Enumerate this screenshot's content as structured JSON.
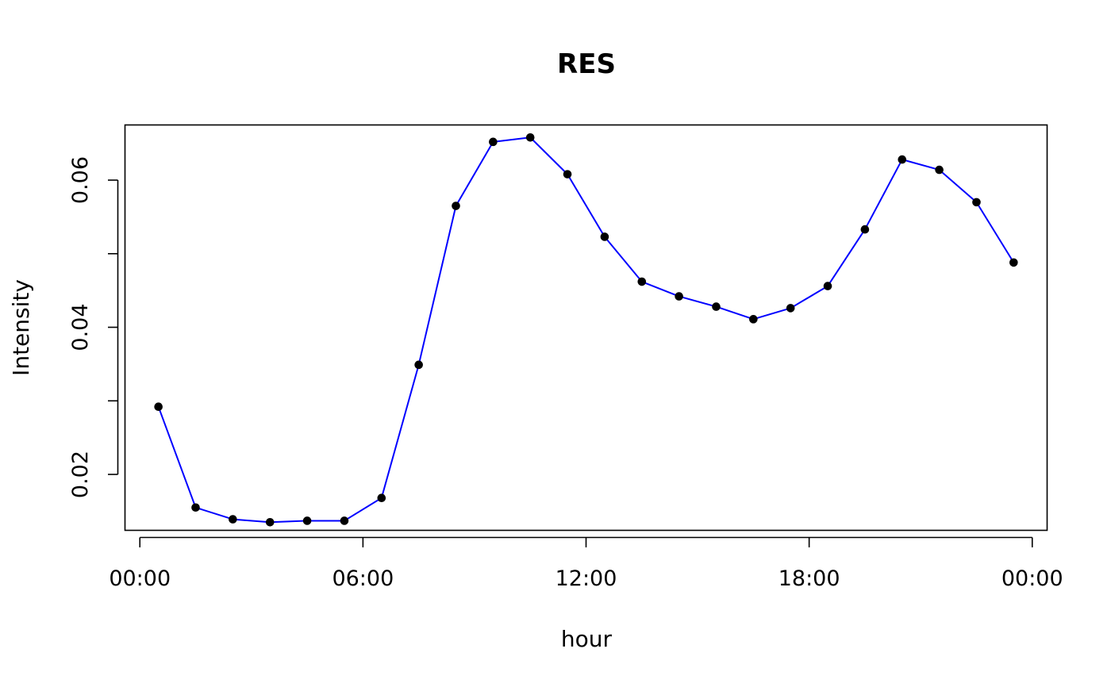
{
  "chart_data": {
    "type": "line",
    "title": "RES",
    "xlabel": "hour",
    "ylabel": "Intensity",
    "x_tick_labels": [
      "00:00",
      "06:00",
      "12:00",
      "18:00",
      "00:00"
    ],
    "y_tick_labels": [
      "0.02",
      "0.04",
      "0.06"
    ],
    "y_ticks": [
      0.02,
      0.03,
      0.04,
      0.05,
      0.06
    ],
    "x_ticks_hours": [
      0,
      6,
      12,
      18,
      24
    ],
    "xlim_hours": [
      -0.4,
      24.4
    ],
    "ylim": [
      0.0124,
      0.0675
    ],
    "grid": false,
    "series": [
      {
        "name": "RES",
        "line_color": "#0000ff",
        "point_color": "#000000",
        "x_hours": [
          0.5,
          1.5,
          2.5,
          3.5,
          4.5,
          5.5,
          6.5,
          7.5,
          8.5,
          9.5,
          10.5,
          11.5,
          12.5,
          13.5,
          14.5,
          15.5,
          16.5,
          17.5,
          18.5,
          19.5,
          20.5,
          21.5,
          22.5,
          23.5
        ],
        "values": [
          0.0292,
          0.0155,
          0.0139,
          0.0135,
          0.0137,
          0.0137,
          0.0168,
          0.0349,
          0.0565,
          0.0652,
          0.0658,
          0.0608,
          0.0523,
          0.0462,
          0.0442,
          0.0428,
          0.0411,
          0.0426,
          0.0456,
          0.0533,
          0.0628,
          0.0614,
          0.057,
          0.0488
        ]
      }
    ]
  }
}
